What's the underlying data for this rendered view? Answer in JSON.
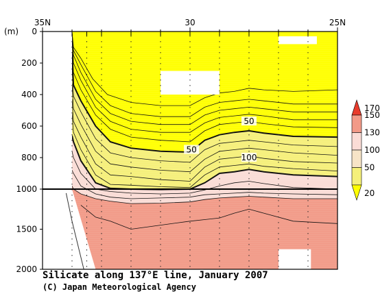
{
  "chart_data": {
    "type": "heatmap",
    "title": "Silicate along 137°E line, January 2007",
    "credit": "(C) Japan Meteorological Agency",
    "x_axis": {
      "ticks": [
        "35N",
        "30",
        "25N"
      ],
      "tick_values": [
        35,
        30,
        25
      ],
      "range": [
        35,
        25
      ]
    },
    "y_axis": {
      "unit": "(m)",
      "upper_ticks": [
        "0",
        "200",
        "400",
        "600",
        "800",
        "1000"
      ],
      "upper_tick_values": [
        0,
        200,
        400,
        600,
        800,
        1000
      ],
      "lower_ticks": [
        "1500",
        "2000"
      ],
      "lower_tick_values": [
        1500,
        2000
      ],
      "break_depth": 1000,
      "range": [
        0,
        2000
      ]
    },
    "colorbar": {
      "labels": [
        "170",
        "150",
        "130",
        "100",
        "50",
        "20"
      ],
      "levels": [
        20,
        50,
        100,
        130,
        150,
        170
      ],
      "colors": [
        "#ffff00",
        "#f5f07a",
        "#f7e4c7",
        "#fadcd6",
        "#f29a88",
        "#e83b2c"
      ]
    },
    "contour_labels": [
      {
        "text": "50",
        "lat": 28.0,
        "depth": 570
      },
      {
        "text": "50",
        "lat": 29.95,
        "depth": 750
      },
      {
        "text": "100",
        "lat": 28.0,
        "depth": 800
      }
    ],
    "contours": [
      {
        "value": 20,
        "points": [
          [
            34.0,
            0
          ],
          [
            33.95,
            100
          ],
          [
            33.7,
            170
          ],
          [
            33.3,
            300
          ],
          [
            32.8,
            400
          ],
          [
            32.0,
            450
          ],
          [
            31.0,
            470
          ],
          [
            30.0,
            470
          ],
          [
            29.5,
            420
          ],
          [
            29.0,
            390
          ],
          [
            28.5,
            380
          ],
          [
            28.0,
            360
          ],
          [
            27.5,
            370
          ],
          [
            26.5,
            380
          ],
          [
            25.0,
            370
          ]
        ]
      },
      {
        "value": 25,
        "points": [
          [
            34.0,
            0
          ],
          [
            33.95,
            120
          ],
          [
            33.7,
            210
          ],
          [
            33.2,
            380
          ],
          [
            32.7,
            470
          ],
          [
            32.0,
            520
          ],
          [
            31.0,
            540
          ],
          [
            30.0,
            540
          ],
          [
            29.5,
            480
          ],
          [
            29.0,
            450
          ],
          [
            28.5,
            440
          ],
          [
            28.0,
            430
          ],
          [
            27.5,
            440
          ],
          [
            26.5,
            460
          ],
          [
            25.0,
            460
          ]
        ]
      },
      {
        "value": 30,
        "points": [
          [
            34.0,
            0
          ],
          [
            33.95,
            150
          ],
          [
            33.7,
            260
          ],
          [
            33.2,
            430
          ],
          [
            32.7,
            520
          ],
          [
            32.0,
            570
          ],
          [
            31.0,
            590
          ],
          [
            30.0,
            590
          ],
          [
            29.5,
            530
          ],
          [
            29.0,
            500
          ],
          [
            28.5,
            490
          ],
          [
            28.0,
            480
          ],
          [
            27.5,
            490
          ],
          [
            26.5,
            510
          ],
          [
            25.0,
            510
          ]
        ]
      },
      {
        "value": 35,
        "points": [
          [
            34.0,
            0
          ],
          [
            33.95,
            200
          ],
          [
            33.7,
            310
          ],
          [
            33.2,
            480
          ],
          [
            32.7,
            570
          ],
          [
            32.0,
            620
          ],
          [
            31.0,
            640
          ],
          [
            30.0,
            640
          ],
          [
            29.5,
            580
          ],
          [
            29.0,
            545
          ],
          [
            28.5,
            535
          ],
          [
            28.0,
            525
          ],
          [
            27.5,
            535
          ],
          [
            26.5,
            560
          ],
          [
            25.0,
            560
          ]
        ]
      },
      {
        "value": 40,
        "points": [
          [
            34.0,
            50
          ],
          [
            33.95,
            260
          ],
          [
            33.7,
            370
          ],
          [
            33.2,
            530
          ],
          [
            32.7,
            620
          ],
          [
            32.0,
            670
          ],
          [
            31.0,
            690
          ],
          [
            30.0,
            700
          ],
          [
            29.5,
            630
          ],
          [
            29.0,
            590
          ],
          [
            28.5,
            580
          ],
          [
            28.0,
            570
          ],
          [
            27.5,
            585
          ],
          [
            26.5,
            605
          ],
          [
            25.0,
            610
          ]
        ]
      },
      {
        "value": 50,
        "points": [
          [
            34.0,
            140
          ],
          [
            33.95,
            340
          ],
          [
            33.7,
            440
          ],
          [
            33.2,
            600
          ],
          [
            32.7,
            700
          ],
          [
            32.0,
            740
          ],
          [
            31.0,
            760
          ],
          [
            30.0,
            765
          ],
          [
            29.5,
            690
          ],
          [
            29.0,
            655
          ],
          [
            28.5,
            640
          ],
          [
            28.0,
            630
          ],
          [
            27.5,
            645
          ],
          [
            26.5,
            665
          ],
          [
            25.0,
            670
          ]
        ]
      },
      {
        "value": 60,
        "points": [
          [
            34.0,
            230
          ],
          [
            33.95,
            410
          ],
          [
            33.7,
            510
          ],
          [
            33.2,
            680
          ],
          [
            32.7,
            770
          ],
          [
            32.0,
            800
          ],
          [
            31.0,
            820
          ],
          [
            30.0,
            830
          ],
          [
            29.5,
            750
          ],
          [
            29.0,
            710
          ],
          [
            28.5,
            700
          ],
          [
            28.0,
            690
          ],
          [
            27.5,
            700
          ],
          [
            26.5,
            720
          ],
          [
            25.0,
            730
          ]
        ]
      },
      {
        "value": 70,
        "points": [
          [
            34.0,
            330
          ],
          [
            33.95,
            490
          ],
          [
            33.7,
            590
          ],
          [
            33.2,
            760
          ],
          [
            32.7,
            840
          ],
          [
            32.0,
            860
          ],
          [
            31.0,
            880
          ],
          [
            30.0,
            890
          ],
          [
            29.5,
            810
          ],
          [
            29.0,
            760
          ],
          [
            28.5,
            750
          ],
          [
            28.0,
            740
          ],
          [
            27.5,
            750
          ],
          [
            26.5,
            770
          ],
          [
            25.0,
            785
          ]
        ]
      },
      {
        "value": 80,
        "points": [
          [
            34.0,
            430
          ],
          [
            33.95,
            570
          ],
          [
            33.7,
            670
          ],
          [
            33.2,
            840
          ],
          [
            32.7,
            910
          ],
          [
            32.0,
            920
          ],
          [
            31.0,
            940
          ],
          [
            30.0,
            950
          ],
          [
            29.5,
            860
          ],
          [
            29.0,
            810
          ],
          [
            28.5,
            800
          ],
          [
            28.0,
            790
          ],
          [
            27.5,
            805
          ],
          [
            26.5,
            825
          ],
          [
            25.0,
            835
          ]
        ]
      },
      {
        "value": 90,
        "points": [
          [
            34.0,
            520
          ],
          [
            33.95,
            640
          ],
          [
            33.7,
            750
          ],
          [
            33.2,
            910
          ],
          [
            32.7,
            970
          ],
          [
            32.0,
            975
          ],
          [
            31.0,
            985
          ],
          [
            30.0,
            990
          ],
          [
            29.5,
            910
          ],
          [
            29.0,
            860
          ],
          [
            28.5,
            850
          ],
          [
            28.0,
            840
          ],
          [
            27.5,
            855
          ],
          [
            26.5,
            870
          ],
          [
            25.0,
            885
          ]
        ]
      },
      {
        "value": 100,
        "points": [
          [
            34.0,
            660
          ],
          [
            33.95,
            700
          ],
          [
            33.7,
            820
          ],
          [
            33.2,
            960
          ],
          [
            32.7,
            995
          ],
          [
            32.0,
            1000
          ],
          [
            31.0,
            1005
          ],
          [
            30.0,
            1000
          ],
          [
            29.5,
            960
          ],
          [
            29.0,
            900
          ],
          [
            28.5,
            890
          ],
          [
            28.0,
            875
          ],
          [
            27.5,
            890
          ],
          [
            26.5,
            910
          ],
          [
            25.0,
            920
          ]
        ]
      },
      {
        "value": 110,
        "points": [
          [
            34.0,
            760
          ],
          [
            33.95,
            800
          ],
          [
            33.7,
            900
          ],
          [
            33.2,
            1000
          ],
          [
            32.7,
            1030
          ],
          [
            32.0,
            1050
          ],
          [
            31.0,
            1060
          ],
          [
            30.0,
            1050
          ],
          [
            29.5,
            1010
          ],
          [
            29.0,
            980
          ],
          [
            28.5,
            960
          ],
          [
            28.0,
            950
          ],
          [
            27.5,
            965
          ],
          [
            26.5,
            990
          ],
          [
            25.0,
            1000
          ]
        ]
      },
      {
        "value": 120,
        "points": [
          [
            34.0,
            880
          ],
          [
            33.95,
            900
          ],
          [
            33.7,
            980
          ],
          [
            33.2,
            1060
          ],
          [
            32.7,
            1100
          ],
          [
            32.0,
            1120
          ],
          [
            31.0,
            1110
          ],
          [
            30.0,
            1100
          ],
          [
            29.5,
            1070
          ],
          [
            29.0,
            1060
          ],
          [
            28.5,
            1050
          ],
          [
            28.0,
            1040
          ],
          [
            27.5,
            1050
          ],
          [
            26.5,
            1060
          ],
          [
            25.0,
            1070
          ]
        ]
      },
      {
        "value": 130,
        "points": [
          [
            34.0,
            980
          ],
          [
            33.95,
            1000
          ],
          [
            33.7,
            1060
          ],
          [
            33.2,
            1120
          ],
          [
            32.7,
            1150
          ],
          [
            32.0,
            1180
          ],
          [
            31.0,
            1175
          ],
          [
            30.0,
            1160
          ],
          [
            29.5,
            1130
          ],
          [
            29.0,
            1110
          ],
          [
            28.5,
            1100
          ],
          [
            28.0,
            1090
          ],
          [
            27.5,
            1100
          ],
          [
            26.5,
            1120
          ],
          [
            25.0,
            1120
          ]
        ]
      },
      {
        "value": 140,
        "points": [
          [
            33.7,
            1200
          ],
          [
            33.2,
            1350
          ],
          [
            32.7,
            1400
          ],
          [
            32.0,
            1500
          ],
          [
            31.0,
            1450
          ],
          [
            30.0,
            1400
          ],
          [
            29.5,
            1380
          ],
          [
            29.0,
            1360
          ],
          [
            28.5,
            1300
          ],
          [
            28.0,
            1250
          ],
          [
            27.5,
            1300
          ],
          [
            26.5,
            1400
          ],
          [
            25.0,
            1430
          ]
        ]
      }
    ]
  }
}
